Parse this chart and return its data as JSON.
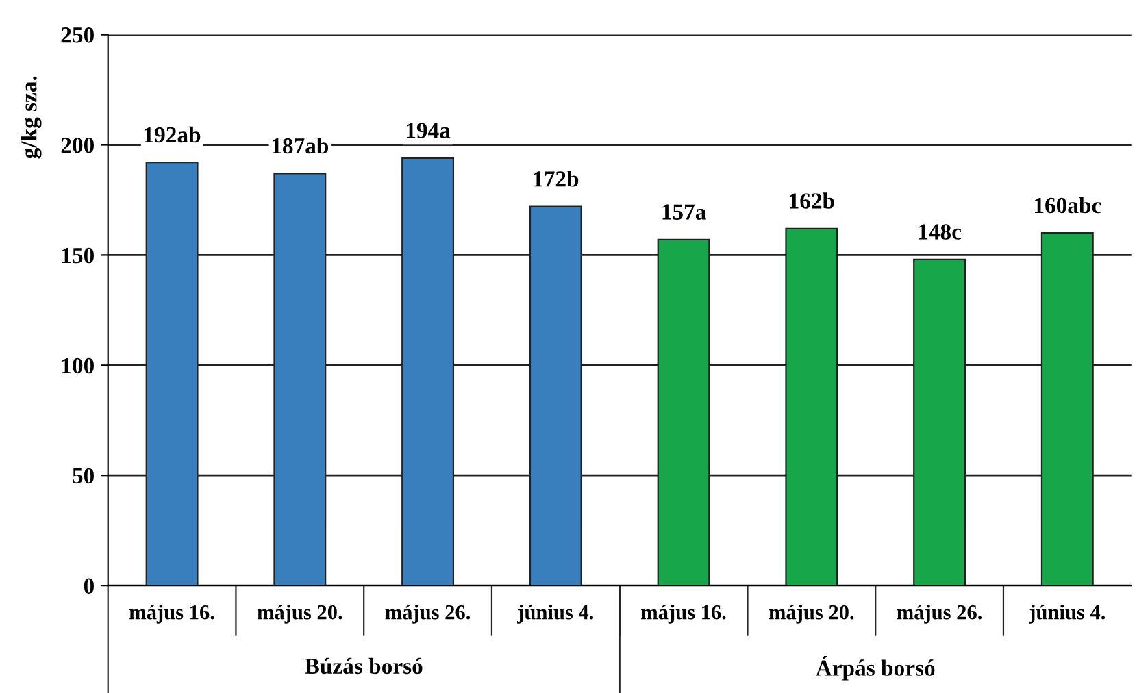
{
  "chart_data": {
    "type": "bar",
    "ylabel": "g/kg sza.",
    "categories": [
      "május 16.",
      "május 20.",
      "május 26.",
      "június 4.",
      "május 16.",
      "május 20.",
      "május 26.",
      "június 4."
    ],
    "values": [
      192,
      187,
      194,
      172,
      157,
      162,
      148,
      160
    ],
    "colors": [
      "#3a7fbd",
      "#3a7fbd",
      "#3a7fbd",
      "#3a7fbd",
      "#17a74a",
      "#17a74a",
      "#17a74a",
      "#17a74a"
    ],
    "value_labels": [
      "192ab",
      "187ab",
      "194a",
      "172b",
      "157a",
      "162b",
      "148c",
      "160abc"
    ],
    "annotations": [
      "Búzás borsó",
      "Árpás borsó"
    ],
    "ylim": [
      0,
      250
    ],
    "yticks": [
      0,
      50,
      100,
      150,
      200,
      250
    ],
    "grid": "y"
  }
}
